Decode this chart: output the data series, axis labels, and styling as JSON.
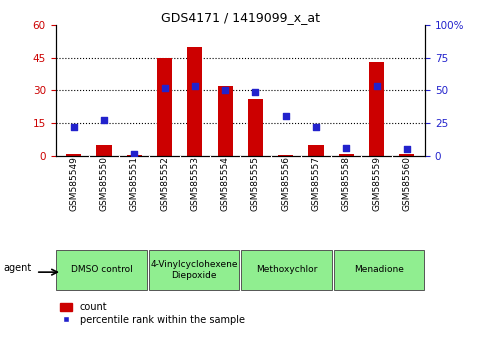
{
  "title": "GDS4171 / 1419099_x_at",
  "samples": [
    "GSM585549",
    "GSM585550",
    "GSM585551",
    "GSM585552",
    "GSM585553",
    "GSM585554",
    "GSM585555",
    "GSM585556",
    "GSM585557",
    "GSM585558",
    "GSM585559",
    "GSM585560"
  ],
  "counts": [
    1,
    5,
    0.5,
    45,
    50,
    32,
    26,
    0.5,
    5,
    1,
    43,
    1
  ],
  "percentiles": [
    22,
    27,
    1,
    52,
    53,
    50,
    49,
    30,
    22,
    6,
    53,
    5
  ],
  "groups": [
    {
      "label": "DMSO control",
      "start": 0,
      "end": 3
    },
    {
      "label": "4-Vinylcyclohexene\nDiepoxide",
      "start": 3,
      "end": 6
    },
    {
      "label": "Methoxychlor",
      "start": 6,
      "end": 9
    },
    {
      "label": "Menadione",
      "start": 9,
      "end": 12
    }
  ],
  "left_ylim": [
    0,
    60
  ],
  "right_ylim": [
    0,
    100
  ],
  "left_yticks": [
    0,
    15,
    30,
    45,
    60
  ],
  "right_yticks": [
    0,
    25,
    50,
    75,
    100
  ],
  "right_yticklabels": [
    "0",
    "25",
    "50",
    "75",
    "100%"
  ],
  "bar_color": "#cc0000",
  "dot_color": "#2222cc",
  "group_color": "#90ee90",
  "group_edge_color": "#555555",
  "plot_bg": "#ffffff",
  "bg_color": "#ffffff",
  "left_tick_color": "#cc0000",
  "right_tick_color": "#2222cc",
  "agent_label": "agent",
  "legend_count_label": "count",
  "legend_pct_label": "percentile rank within the sample",
  "bar_width": 0.5,
  "dot_size": 20
}
